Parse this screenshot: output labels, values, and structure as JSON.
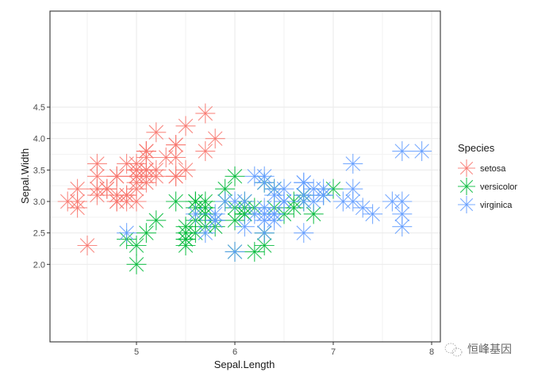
{
  "chart_data": {
    "type": "scatter",
    "title": "",
    "xlabel": "Sepal.Length",
    "ylabel": "Sepal.Width",
    "xlim": [
      4.2,
      8.1
    ],
    "ylim": [
      1.9,
      4.5
    ],
    "x_ticks": [
      5,
      6,
      7,
      8
    ],
    "x_tick_labels": [
      "5",
      "6",
      "7",
      "8"
    ],
    "y_ticks": [
      2.0,
      2.5,
      3.0,
      3.5,
      4.0,
      4.5
    ],
    "y_tick_labels": [
      "2.0",
      "2.5",
      "3.0",
      "3.5",
      "4.0",
      "4.5"
    ],
    "grid": true,
    "marker": "asterisk",
    "legend": {
      "title": "Species",
      "position": "right",
      "entries": [
        "setosa",
        "versicolor",
        "virginica"
      ]
    },
    "series": [
      {
        "name": "setosa",
        "color": "#F8766D",
        "x": [
          5.1,
          4.9,
          4.7,
          4.6,
          5.0,
          5.4,
          4.6,
          5.0,
          4.4,
          4.9,
          5.4,
          4.8,
          4.8,
          4.3,
          5.8,
          5.7,
          5.4,
          5.1,
          5.7,
          5.1,
          5.4,
          5.1,
          4.6,
          5.1,
          4.8,
          5.0,
          5.0,
          5.2,
          5.2,
          4.7,
          4.8,
          5.4,
          5.2,
          5.5,
          4.9,
          5.0,
          5.5,
          4.9,
          4.4,
          5.1,
          5.0,
          4.5,
          4.4,
          5.0,
          5.1,
          4.8,
          5.1,
          4.6,
          5.3,
          5.0
        ],
        "y": [
          3.5,
          3.0,
          3.2,
          3.1,
          3.6,
          3.9,
          3.4,
          3.4,
          2.9,
          3.1,
          3.7,
          3.4,
          3.0,
          3.0,
          4.0,
          4.4,
          3.9,
          3.5,
          3.8,
          3.8,
          3.4,
          3.7,
          3.6,
          3.3,
          3.4,
          3.0,
          3.4,
          3.5,
          3.4,
          3.2,
          3.1,
          3.4,
          4.1,
          4.2,
          3.1,
          3.2,
          3.5,
          3.6,
          3.0,
          3.4,
          3.5,
          2.3,
          3.2,
          3.5,
          3.8,
          3.0,
          3.8,
          3.2,
          3.7,
          3.3
        ]
      },
      {
        "name": "versicolor",
        "color": "#00BA38",
        "x": [
          7.0,
          6.4,
          6.9,
          5.5,
          6.5,
          5.7,
          6.3,
          4.9,
          6.6,
          5.2,
          5.0,
          5.9,
          6.0,
          6.1,
          5.6,
          6.7,
          5.6,
          5.8,
          6.2,
          5.6,
          5.9,
          6.1,
          6.3,
          6.1,
          6.4,
          6.6,
          6.8,
          6.7,
          6.0,
          5.7,
          5.5,
          5.5,
          5.8,
          6.0,
          5.4,
          6.0,
          6.7,
          6.3,
          5.6,
          5.5,
          5.5,
          6.1,
          5.8,
          5.0,
          5.6,
          5.7,
          5.7,
          6.2,
          5.1,
          5.7
        ],
        "y": [
          3.2,
          3.2,
          3.1,
          2.3,
          2.8,
          2.8,
          3.3,
          2.4,
          2.9,
          2.7,
          2.0,
          3.0,
          2.2,
          2.9,
          2.9,
          3.1,
          3.0,
          2.7,
          2.2,
          2.5,
          3.2,
          2.8,
          2.5,
          2.8,
          2.9,
          3.0,
          2.8,
          3.0,
          2.9,
          2.6,
          2.4,
          2.4,
          2.7,
          2.7,
          3.0,
          3.4,
          3.1,
          2.3,
          3.0,
          2.5,
          2.6,
          3.0,
          2.6,
          2.3,
          2.7,
          3.0,
          2.9,
          2.9,
          2.5,
          2.8
        ]
      },
      {
        "name": "virginica",
        "color": "#619CFF",
        "x": [
          6.3,
          5.8,
          7.1,
          6.3,
          6.5,
          7.6,
          4.9,
          7.3,
          6.7,
          7.2,
          6.5,
          6.4,
          6.8,
          5.7,
          5.8,
          6.4,
          6.5,
          7.7,
          7.7,
          6.0,
          6.9,
          5.6,
          7.7,
          6.3,
          6.7,
          7.2,
          6.2,
          6.1,
          6.4,
          7.2,
          7.4,
          7.9,
          6.4,
          6.3,
          6.1,
          7.7,
          6.3,
          6.4,
          6.0,
          6.9,
          6.7,
          6.9,
          5.8,
          6.8,
          6.7,
          6.7,
          6.3,
          6.5,
          6.2,
          5.9
        ],
        "y": [
          3.3,
          2.7,
          3.0,
          2.9,
          3.0,
          3.0,
          2.5,
          2.9,
          2.5,
          3.6,
          3.2,
          2.7,
          3.0,
          2.5,
          2.8,
          3.2,
          3.0,
          3.8,
          2.6,
          2.2,
          3.2,
          2.8,
          2.8,
          2.7,
          3.3,
          3.2,
          2.8,
          3.0,
          2.8,
          3.0,
          2.8,
          3.8,
          2.8,
          2.8,
          2.6,
          3.0,
          3.4,
          3.1,
          3.0,
          3.1,
          3.1,
          3.1,
          2.7,
          3.2,
          3.3,
          3.0,
          2.5,
          3.0,
          3.4,
          3.0
        ]
      }
    ]
  },
  "watermark": {
    "text": "恒峰基因",
    "icon": "wechat-icon"
  }
}
